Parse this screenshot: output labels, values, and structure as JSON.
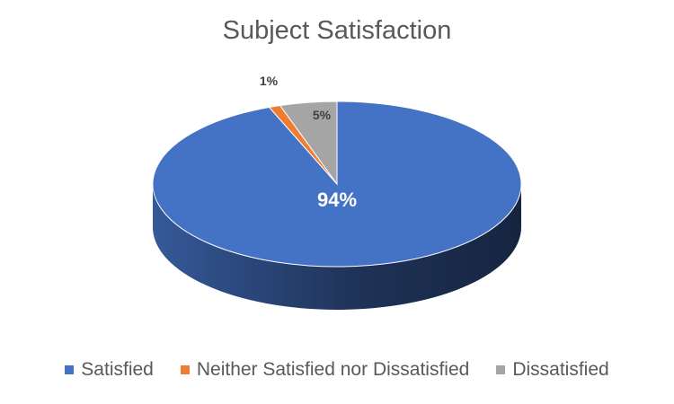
{
  "chart_data": {
    "type": "pie",
    "title": "Subject Satisfaction",
    "categories": [
      "Satisfied",
      "Neither Satisfied nor Dissatisfied",
      "Dissatisfied"
    ],
    "values": [
      94,
      1,
      5
    ],
    "data_labels": [
      "94%",
      "1%",
      "5%"
    ],
    "colors": [
      "#4472C4",
      "#ED7D31",
      "#A5A5A5"
    ],
    "legend_position": "bottom",
    "style": "3d"
  }
}
